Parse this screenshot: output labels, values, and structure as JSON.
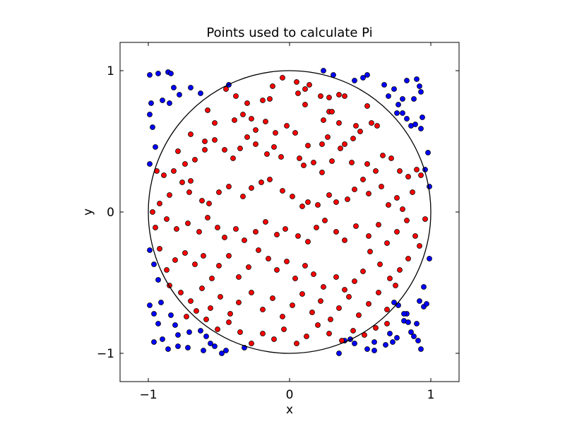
{
  "chart_data": {
    "type": "scatter",
    "title": "Points used to calculate Pi",
    "xlabel": "x",
    "ylabel": "y",
    "xlim": [
      -1.2,
      1.2
    ],
    "ylim": [
      -1.2,
      1.2
    ],
    "xticks": [
      -1,
      0,
      1
    ],
    "yticks": [
      -1,
      0,
      1
    ],
    "xtick_labels": [
      "−1",
      "0",
      "1"
    ],
    "ytick_labels": [
      "−1",
      "0",
      "1"
    ],
    "grid": false,
    "legend": "none",
    "circle": {
      "center": [
        0,
        0
      ],
      "radius": 1,
      "color": "#000000"
    },
    "series": [
      {
        "color": "#0000ff",
        "points": [
          [
            -0.99,
            0.97
          ],
          [
            -0.93,
            0.98
          ],
          [
            -0.86,
            0.99
          ],
          [
            -0.84,
            0.98
          ],
          [
            -0.82,
            0.88
          ],
          [
            -0.78,
            0.83
          ],
          [
            -0.7,
            0.88
          ],
          [
            -0.63,
            0.84
          ],
          [
            -0.85,
            0.77
          ],
          [
            -0.9,
            0.79
          ],
          [
            -0.98,
            0.77
          ],
          [
            -0.99,
            0.69
          ],
          [
            -0.97,
            0.6
          ],
          [
            -0.95,
            0.46
          ],
          [
            -0.99,
            0.34
          ],
          [
            -0.43,
            0.9
          ],
          [
            0.24,
            1.0
          ],
          [
            0.31,
            0.97
          ],
          [
            0.46,
            0.93
          ],
          [
            0.52,
            0.95
          ],
          [
            0.55,
            0.97
          ],
          [
            0.67,
            0.9
          ],
          [
            0.7,
            0.82
          ],
          [
            0.74,
            0.87
          ],
          [
            0.8,
            0.8
          ],
          [
            0.83,
            0.93
          ],
          [
            0.9,
            0.94
          ],
          [
            0.92,
            0.89
          ],
          [
            0.88,
            0.8
          ],
          [
            0.93,
            0.85
          ],
          [
            0.77,
            0.76
          ],
          [
            0.76,
            0.7
          ],
          [
            0.8,
            0.7
          ],
          [
            0.83,
            0.66
          ],
          [
            0.86,
            0.61
          ],
          [
            0.89,
            0.62
          ],
          [
            0.93,
            0.59
          ],
          [
            0.94,
            0.67
          ],
          [
            0.98,
            0.42
          ],
          [
            0.96,
            0.3
          ],
          [
            0.99,
            0.18
          ],
          [
            -0.99,
            -0.27
          ],
          [
            -0.96,
            -0.37
          ],
          [
            -0.93,
            -0.48
          ],
          [
            -0.99,
            -0.66
          ],
          [
            -0.96,
            -0.72
          ],
          [
            -0.91,
            -0.64
          ],
          [
            -0.93,
            -0.79
          ],
          [
            -0.84,
            -0.73
          ],
          [
            -0.81,
            -0.8
          ],
          [
            -0.79,
            -0.87
          ],
          [
            -0.71,
            -0.85
          ],
          [
            -0.63,
            -0.84
          ],
          [
            -0.59,
            -0.88
          ],
          [
            -0.56,
            -0.93
          ],
          [
            -0.53,
            -0.95
          ],
          [
            -0.61,
            -0.98
          ],
          [
            -0.72,
            -0.96
          ],
          [
            -0.79,
            -0.95
          ],
          [
            -0.86,
            -0.97
          ],
          [
            -0.9,
            -0.9
          ],
          [
            -0.96,
            -0.92
          ],
          [
            -0.45,
            -0.98
          ],
          [
            -0.48,
            -1.0
          ],
          [
            -0.32,
            -0.96
          ],
          [
            0.35,
            -1.0
          ],
          [
            0.39,
            -0.91
          ],
          [
            0.43,
            -0.9
          ],
          [
            0.46,
            -0.93
          ],
          [
            0.55,
            -0.97
          ],
          [
            0.6,
            -0.98
          ],
          [
            0.6,
            -0.92
          ],
          [
            0.68,
            -0.94
          ],
          [
            0.71,
            -0.86
          ],
          [
            0.73,
            -0.92
          ],
          [
            0.76,
            -0.89
          ],
          [
            0.81,
            -0.77
          ],
          [
            0.83,
            -0.72
          ],
          [
            0.84,
            -0.78
          ],
          [
            0.86,
            -0.85
          ],
          [
            0.88,
            -0.88
          ],
          [
            0.91,
            -0.91
          ],
          [
            0.93,
            -0.97
          ],
          [
            0.9,
            -0.79
          ],
          [
            0.92,
            -0.63
          ],
          [
            0.95,
            -0.67
          ],
          [
            0.97,
            -0.65
          ],
          [
            0.95,
            -0.53
          ],
          [
            0.99,
            -0.33
          ],
          [
            0.81,
            -0.72
          ],
          [
            0.77,
            -0.66
          ],
          [
            0.74,
            -0.64
          ]
        ]
      },
      {
        "color": "#ff0000",
        "points": [
          [
            -0.58,
            0.72
          ],
          [
            -0.45,
            0.87
          ],
          [
            -0.38,
            0.82
          ],
          [
            -0.3,
            0.77
          ],
          [
            -0.19,
            0.79
          ],
          [
            -0.14,
            0.8
          ],
          [
            -0.12,
            0.89
          ],
          [
            -0.05,
            0.95
          ],
          [
            0.05,
            0.92
          ],
          [
            0.11,
            0.76
          ],
          [
            0.06,
            0.84
          ],
          [
            0.11,
            0.87
          ],
          [
            0.14,
            0.9
          ],
          [
            0.22,
            0.82
          ],
          [
            0.28,
            0.81
          ],
          [
            0.35,
            0.83
          ],
          [
            0.39,
            0.82
          ],
          [
            0.28,
            0.71
          ],
          [
            0.24,
            0.65
          ],
          [
            0.3,
            0.71
          ],
          [
            0.35,
            0.63
          ],
          [
            0.47,
            0.61
          ],
          [
            0.55,
            0.75
          ],
          [
            0.62,
            0.61
          ],
          [
            0.58,
            0.63
          ],
          [
            0.5,
            0.57
          ],
          [
            0.45,
            0.52
          ],
          [
            0.39,
            0.48
          ],
          [
            0.27,
            0.53
          ],
          [
            0.23,
            0.48
          ],
          [
            0.13,
            0.47
          ],
          [
            0.04,
            0.56
          ],
          [
            -0.02,
            0.61
          ],
          [
            -0.1,
            0.56
          ],
          [
            -0.17,
            0.64
          ],
          [
            -0.24,
            0.58
          ],
          [
            -0.27,
            0.66
          ],
          [
            -0.33,
            0.69
          ],
          [
            -0.39,
            0.65
          ],
          [
            -0.53,
            0.63
          ],
          [
            -0.6,
            0.5
          ],
          [
            -0.7,
            0.55
          ],
          [
            -0.79,
            0.43
          ],
          [
            -0.74,
            0.34
          ],
          [
            -0.67,
            0.37
          ],
          [
            -0.6,
            0.44
          ],
          [
            -0.53,
            0.51
          ],
          [
            -0.46,
            0.44
          ],
          [
            -0.4,
            0.38
          ],
          [
            -0.35,
            0.45
          ],
          [
            -0.3,
            0.53
          ],
          [
            -0.24,
            0.48
          ],
          [
            -0.16,
            0.41
          ],
          [
            -0.11,
            0.46
          ],
          [
            -0.06,
            0.39
          ],
          [
            0.07,
            0.38
          ],
          [
            0.1,
            0.33
          ],
          [
            0.17,
            0.35
          ],
          [
            0.23,
            0.28
          ],
          [
            0.3,
            0.36
          ],
          [
            0.36,
            0.45
          ],
          [
            0.44,
            0.35
          ],
          [
            0.55,
            0.34
          ],
          [
            0.61,
            0.29
          ],
          [
            0.66,
            0.4
          ],
          [
            0.72,
            0.38
          ],
          [
            0.78,
            0.29
          ],
          [
            0.84,
            0.25
          ],
          [
            0.9,
            0.3
          ],
          [
            0.93,
            0.26
          ],
          [
            0.87,
            0.14
          ],
          [
            0.8,
            0.02
          ],
          [
            0.76,
            0.1
          ],
          [
            0.7,
            0.05
          ],
          [
            0.65,
            0.18
          ],
          [
            0.56,
            0.13
          ],
          [
            0.52,
            0.23
          ],
          [
            0.46,
            0.16
          ],
          [
            0.41,
            0.09
          ],
          [
            0.33,
            0.07
          ],
          [
            0.28,
            0.12
          ],
          [
            0.2,
            0.05
          ],
          [
            0.13,
            0.07
          ],
          [
            0.09,
            0.04
          ],
          [
            0.02,
            0.11
          ],
          [
            -0.05,
            0.15
          ],
          [
            -0.14,
            0.23
          ],
          [
            -0.2,
            0.21
          ],
          [
            -0.27,
            0.17
          ],
          [
            -0.33,
            0.11
          ],
          [
            -0.43,
            0.18
          ],
          [
            -0.5,
            0.14
          ],
          [
            -0.57,
            0.06
          ],
          [
            -0.62,
            0.08
          ],
          [
            -0.71,
            0.14
          ],
          [
            -0.76,
            0.21
          ],
          [
            -0.85,
            0.12
          ],
          [
            -0.92,
            0.06
          ],
          [
            -0.97,
            0.0
          ],
          [
            -0.94,
            0.29
          ],
          [
            -0.89,
            0.26
          ],
          [
            -0.82,
            0.29
          ],
          [
            -0.7,
            0.22
          ],
          [
            -0.95,
            -0.11
          ],
          [
            -0.87,
            -0.05
          ],
          [
            -0.8,
            -0.12
          ],
          [
            -0.72,
            -0.08
          ],
          [
            -0.64,
            -0.14
          ],
          [
            -0.58,
            -0.04
          ],
          [
            -0.51,
            -0.11
          ],
          [
            -0.46,
            -0.18
          ],
          [
            -0.38,
            -0.12
          ],
          [
            -0.32,
            -0.2
          ],
          [
            -0.24,
            -0.14
          ],
          [
            -0.17,
            -0.07
          ],
          [
            -0.09,
            -0.16
          ],
          [
            -0.03,
            -0.12
          ],
          [
            0.06,
            -0.17
          ],
          [
            0.13,
            -0.21
          ],
          [
            0.19,
            -0.11
          ],
          [
            0.25,
            -0.06
          ],
          [
            0.33,
            -0.14
          ],
          [
            0.39,
            -0.2
          ],
          [
            0.47,
            -0.1
          ],
          [
            0.56,
            -0.17
          ],
          [
            0.63,
            -0.09
          ],
          [
            0.69,
            -0.22
          ],
          [
            0.76,
            -0.14
          ],
          [
            0.83,
            -0.06
          ],
          [
            0.89,
            -0.17
          ],
          [
            0.96,
            -0.05
          ],
          [
            0.92,
            -0.24
          ],
          [
            0.84,
            -0.33
          ],
          [
            0.78,
            -0.41
          ],
          [
            0.71,
            -0.47
          ],
          [
            0.64,
            -0.37
          ],
          [
            0.57,
            -0.28
          ],
          [
            0.52,
            -0.42
          ],
          [
            0.46,
            -0.49
          ],
          [
            0.39,
            -0.55
          ],
          [
            0.33,
            -0.46
          ],
          [
            0.24,
            -0.53
          ],
          [
            0.17,
            -0.44
          ],
          [
            0.11,
            -0.38
          ],
          [
            0.04,
            -0.47
          ],
          [
            -0.02,
            -0.35
          ],
          [
            -0.09,
            -0.41
          ],
          [
            -0.15,
            -0.33
          ],
          [
            -0.22,
            -0.27
          ],
          [
            -0.29,
            -0.39
          ],
          [
            -0.36,
            -0.46
          ],
          [
            -0.43,
            -0.31
          ],
          [
            -0.5,
            -0.38
          ],
          [
            -0.55,
            -0.47
          ],
          [
            -0.61,
            -0.31
          ],
          [
            -0.67,
            -0.37
          ],
          [
            -0.74,
            -0.29
          ],
          [
            -0.81,
            -0.34
          ],
          [
            -0.87,
            -0.41
          ],
          [
            -0.92,
            -0.26
          ],
          [
            -0.85,
            -0.52
          ],
          [
            -0.77,
            -0.57
          ],
          [
            -0.7,
            -0.63
          ],
          [
            -0.62,
            -0.54
          ],
          [
            -0.56,
            -0.68
          ],
          [
            -0.49,
            -0.6
          ],
          [
            -0.42,
            -0.72
          ],
          [
            -0.36,
            -0.64
          ],
          [
            -0.27,
            -0.57
          ],
          [
            -0.19,
            -0.69
          ],
          [
            -0.12,
            -0.61
          ],
          [
            -0.05,
            -0.74
          ],
          [
            0.02,
            -0.66
          ],
          [
            0.09,
            -0.58
          ],
          [
            0.16,
            -0.71
          ],
          [
            0.22,
            -0.63
          ],
          [
            0.29,
            -0.76
          ],
          [
            0.35,
            -0.68
          ],
          [
            0.42,
            -0.6
          ],
          [
            0.49,
            -0.73
          ],
          [
            0.56,
            -0.65
          ],
          [
            0.63,
            -0.57
          ],
          [
            0.69,
            -0.69
          ],
          [
            0.75,
            -0.52
          ],
          [
            0.69,
            -0.79
          ],
          [
            0.61,
            -0.82
          ],
          [
            0.53,
            -0.87
          ],
          [
            0.45,
            -0.84
          ],
          [
            0.37,
            -0.91
          ],
          [
            0.28,
            -0.86
          ],
          [
            0.2,
            -0.8
          ],
          [
            0.12,
            -0.88
          ],
          [
            0.05,
            -0.93
          ],
          [
            -0.04,
            -0.83
          ],
          [
            -0.11,
            -0.9
          ],
          [
            -0.19,
            -0.86
          ],
          [
            -0.27,
            -0.93
          ],
          [
            -0.35,
            -0.85
          ],
          [
            -0.43,
            -0.78
          ],
          [
            -0.51,
            -0.83
          ],
          [
            -0.59,
            -0.76
          ],
          [
            -0.66,
            -0.7
          ],
          [
            -0.73,
            -0.74
          ]
        ]
      }
    ]
  }
}
